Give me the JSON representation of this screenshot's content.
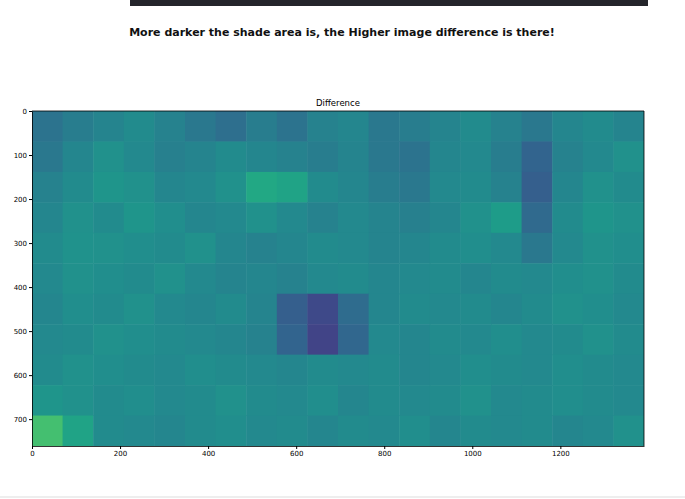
{
  "heading": "More darker the shade area is, the Higher image difference is there!",
  "chart_data": {
    "type": "heatmap",
    "title": "Difference",
    "color": "viridis",
    "xlim": [
      0,
      1390
    ],
    "ylim": [
      761,
      0
    ],
    "xticks": [
      0,
      200,
      400,
      600,
      800,
      1000,
      1200
    ],
    "yticks": [
      0,
      100,
      200,
      300,
      400,
      500,
      600,
      700
    ],
    "zlim": [
      0,
      1
    ],
    "cells": [
      [
        0.38,
        0.42,
        0.45,
        0.48,
        0.44,
        0.4,
        0.36,
        0.42,
        0.38,
        0.44,
        0.46,
        0.4,
        0.42,
        0.45,
        0.48,
        0.44,
        0.4,
        0.46,
        0.48,
        0.45
      ],
      [
        0.4,
        0.46,
        0.5,
        0.47,
        0.43,
        0.45,
        0.48,
        0.46,
        0.44,
        0.42,
        0.45,
        0.4,
        0.38,
        0.46,
        0.47,
        0.42,
        0.32,
        0.44,
        0.47,
        0.5
      ],
      [
        0.44,
        0.48,
        0.52,
        0.5,
        0.46,
        0.47,
        0.5,
        0.6,
        0.58,
        0.48,
        0.46,
        0.42,
        0.4,
        0.47,
        0.48,
        0.44,
        0.3,
        0.46,
        0.5,
        0.48
      ],
      [
        0.46,
        0.5,
        0.48,
        0.52,
        0.49,
        0.46,
        0.47,
        0.5,
        0.47,
        0.44,
        0.47,
        0.45,
        0.43,
        0.46,
        0.5,
        0.55,
        0.34,
        0.48,
        0.52,
        0.5
      ],
      [
        0.48,
        0.51,
        0.5,
        0.49,
        0.48,
        0.5,
        0.46,
        0.44,
        0.46,
        0.48,
        0.47,
        0.45,
        0.46,
        0.48,
        0.49,
        0.47,
        0.4,
        0.47,
        0.5,
        0.49
      ],
      [
        0.47,
        0.5,
        0.49,
        0.48,
        0.5,
        0.47,
        0.45,
        0.46,
        0.44,
        0.47,
        0.48,
        0.46,
        0.47,
        0.48,
        0.46,
        0.48,
        0.47,
        0.49,
        0.5,
        0.48
      ],
      [
        0.46,
        0.49,
        0.48,
        0.5,
        0.47,
        0.46,
        0.48,
        0.45,
        0.3,
        0.22,
        0.35,
        0.46,
        0.48,
        0.47,
        0.48,
        0.46,
        0.48,
        0.5,
        0.49,
        0.47
      ],
      [
        0.47,
        0.48,
        0.5,
        0.49,
        0.48,
        0.47,
        0.46,
        0.44,
        0.32,
        0.2,
        0.33,
        0.47,
        0.46,
        0.48,
        0.47,
        0.49,
        0.47,
        0.48,
        0.5,
        0.48
      ],
      [
        0.48,
        0.5,
        0.49,
        0.48,
        0.47,
        0.49,
        0.48,
        0.47,
        0.46,
        0.48,
        0.47,
        0.48,
        0.46,
        0.47,
        0.49,
        0.48,
        0.47,
        0.49,
        0.48,
        0.47
      ],
      [
        0.52,
        0.5,
        0.48,
        0.49,
        0.47,
        0.48,
        0.5,
        0.48,
        0.47,
        0.49,
        0.46,
        0.48,
        0.47,
        0.48,
        0.5,
        0.47,
        0.48,
        0.49,
        0.48,
        0.47
      ],
      [
        0.7,
        0.58,
        0.48,
        0.47,
        0.46,
        0.48,
        0.49,
        0.47,
        0.48,
        0.46,
        0.48,
        0.47,
        0.49,
        0.46,
        0.48,
        0.47,
        0.48,
        0.46,
        0.47,
        0.5
      ]
    ]
  }
}
